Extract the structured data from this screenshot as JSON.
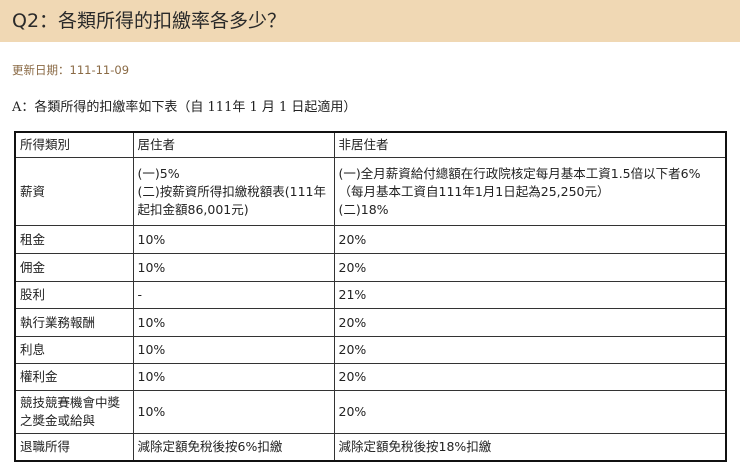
{
  "title": "Q2：各類所得的扣繳率各多少？",
  "update_date": "更新日期：111-11-09",
  "answer_intro": "A：各類所得的扣繳率如下表（自 111年 1 月 1 日起適用）",
  "table": {
    "headers": [
      "所得類別",
      "居住者",
      "非居住者"
    ],
    "rows": [
      {
        "category": "薪資",
        "resident": [
          "(一)5%",
          "(二)按薪資所得扣繳稅額表(111年起扣金額86,001元)"
        ],
        "nonresident": [
          "(一)全月薪資給付總額在行政院核定每月基本工資1.5倍以下者6%（每月基本工資自111年1月1日起為25,250元）",
          "(二)18%"
        ]
      },
      {
        "category": "租金",
        "resident": [
          "10%"
        ],
        "nonresident": [
          "20%"
        ]
      },
      {
        "category": "佣金",
        "resident": [
          "10%"
        ],
        "nonresident": [
          "20%"
        ]
      },
      {
        "category": "股利",
        "resident": [
          "-"
        ],
        "nonresident": [
          "21%"
        ]
      },
      {
        "category": "執行業務報酬",
        "resident": [
          "10%"
        ],
        "nonresident": [
          "20%"
        ]
      },
      {
        "category": "利息",
        "resident": [
          "10%"
        ],
        "nonresident": [
          "20%"
        ]
      },
      {
        "category": "權利金",
        "resident": [
          "10%"
        ],
        "nonresident": [
          "20%"
        ]
      },
      {
        "category": "競技競賽機會中獎之獎金或給與",
        "resident": [
          "10%"
        ],
        "nonresident": [
          "20%"
        ]
      },
      {
        "category": "退職所得",
        "resident": [
          "減除定額免稅後按6%扣繳"
        ],
        "nonresident": [
          "減除定額免稅後按18%扣繳"
        ]
      }
    ]
  }
}
